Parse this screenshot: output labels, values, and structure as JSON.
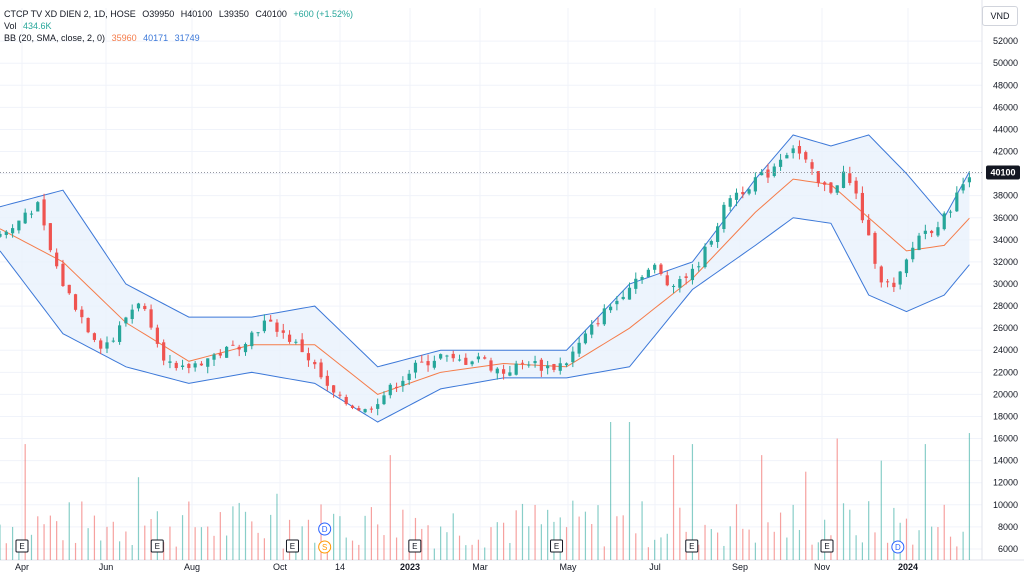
{
  "legend": {
    "symbol": "CTCP TV XD DIEN 2, 1D, HOSE",
    "open": "O39950",
    "high": "H40100",
    "low": "L39350",
    "close": "C40100",
    "change": "+600 (+1.52%)",
    "vol_label": "Vol",
    "vol_value": "434.6K",
    "bb_label": "BB (20, SMA, close, 2, 0)",
    "bb_mid": "35960",
    "bb_upper": "40171",
    "bb_lower": "31749"
  },
  "currency": "VND",
  "colors": {
    "up": "#26a69a",
    "down": "#ef5350",
    "bb_mid": "#f57c4a",
    "bb_band": "#3c78d8",
    "bb_fill": "#e8f1fc",
    "price_tag": "#131722",
    "grid": "#f0f3fa",
    "axis_text": "#131722"
  },
  "chart_data": {
    "type": "candlestick",
    "title": "CTCP TV XD DIEN 2, 1D, HOSE",
    "x_ticks": [
      "Apr",
      "Jun",
      "Aug",
      "Oct",
      "14",
      "2023",
      "Mar",
      "May",
      "Jul",
      "Sep",
      "Nov",
      "2024"
    ],
    "y_ticks": [
      6000,
      8000,
      10000,
      12000,
      14000,
      16000,
      18000,
      20000,
      22000,
      24000,
      26000,
      28000,
      30000,
      32000,
      34000,
      36000,
      38000,
      40000,
      42000,
      44000,
      46000,
      48000,
      50000,
      52000
    ],
    "ylim": [
      5000,
      55000
    ],
    "last_price": 40100,
    "last_price_label": "40100",
    "price_path": [
      [
        0,
        34500
      ],
      [
        2,
        35000
      ],
      [
        4,
        36500
      ],
      [
        6,
        37000
      ],
      [
        8,
        33000
      ],
      [
        10,
        30000
      ],
      [
        12,
        28000
      ],
      [
        14,
        26000
      ],
      [
        16,
        24500
      ],
      [
        18,
        25000
      ],
      [
        20,
        27000
      ],
      [
        22,
        28500
      ],
      [
        24,
        26500
      ],
      [
        26,
        23500
      ],
      [
        28,
        22000
      ],
      [
        30,
        22500
      ],
      [
        32,
        23000
      ],
      [
        34,
        23500
      ],
      [
        36,
        24000
      ],
      [
        38,
        24500
      ],
      [
        40,
        25500
      ],
      [
        42,
        26500
      ],
      [
        44,
        26000
      ],
      [
        46,
        25000
      ],
      [
        48,
        24000
      ],
      [
        50,
        22500
      ],
      [
        52,
        20500
      ],
      [
        54,
        19500
      ],
      [
        56,
        19000
      ],
      [
        58,
        18500
      ],
      [
        60,
        19500
      ],
      [
        62,
        20500
      ],
      [
        64,
        21500
      ],
      [
        66,
        22500
      ],
      [
        68,
        23000
      ],
      [
        70,
        23500
      ],
      [
        72,
        23000
      ],
      [
        74,
        23000
      ],
      [
        76,
        23500
      ],
      [
        78,
        22500
      ],
      [
        80,
        22000
      ],
      [
        82,
        22500
      ],
      [
        84,
        23000
      ],
      [
        86,
        22500
      ],
      [
        88,
        22500
      ],
      [
        90,
        23000
      ],
      [
        92,
        24500
      ],
      [
        94,
        26000
      ],
      [
        96,
        27500
      ],
      [
        98,
        28500
      ],
      [
        100,
        30000
      ],
      [
        102,
        31000
      ],
      [
        104,
        31500
      ],
      [
        106,
        30000
      ],
      [
        108,
        30500
      ],
      [
        110,
        31000
      ],
      [
        112,
        33000
      ],
      [
        114,
        35500
      ],
      [
        116,
        38000
      ],
      [
        118,
        38500
      ],
      [
        120,
        39500
      ],
      [
        122,
        40000
      ],
      [
        124,
        41500
      ],
      [
        126,
        42500
      ],
      [
        128,
        41000
      ],
      [
        130,
        39000
      ],
      [
        132,
        38500
      ],
      [
        134,
        40000
      ],
      [
        136,
        38000
      ],
      [
        138,
        34000
      ],
      [
        140,
        30500
      ],
      [
        142,
        29500
      ],
      [
        144,
        32000
      ],
      [
        146,
        34500
      ],
      [
        148,
        35000
      ],
      [
        150,
        36000
      ],
      [
        152,
        38000
      ],
      [
        154,
        40100
      ]
    ],
    "bb_mid_path": [
      [
        0,
        35000
      ],
      [
        10,
        32000
      ],
      [
        20,
        26500
      ],
      [
        30,
        23000
      ],
      [
        40,
        24500
      ],
      [
        50,
        24500
      ],
      [
        60,
        20000
      ],
      [
        70,
        22000
      ],
      [
        80,
        22800
      ],
      [
        90,
        22500
      ],
      [
        100,
        26000
      ],
      [
        110,
        30500
      ],
      [
        120,
        36500
      ],
      [
        126,
        39500
      ],
      [
        132,
        39000
      ],
      [
        138,
        36000
      ],
      [
        144,
        33000
      ],
      [
        150,
        33500
      ],
      [
        154,
        35960
      ]
    ],
    "bb_upper_path": [
      [
        0,
        37000
      ],
      [
        10,
        38500
      ],
      [
        20,
        30000
      ],
      [
        30,
        27000
      ],
      [
        40,
        27000
      ],
      [
        50,
        28000
      ],
      [
        60,
        22500
      ],
      [
        70,
        24000
      ],
      [
        80,
        24000
      ],
      [
        90,
        24000
      ],
      [
        100,
        30000
      ],
      [
        110,
        32000
      ],
      [
        120,
        39500
      ],
      [
        126,
        43500
      ],
      [
        132,
        42500
      ],
      [
        138,
        43500
      ],
      [
        144,
        40000
      ],
      [
        150,
        36000
      ],
      [
        154,
        40171
      ]
    ],
    "bb_lower_path": [
      [
        0,
        33000
      ],
      [
        10,
        25500
      ],
      [
        20,
        22500
      ],
      [
        30,
        21000
      ],
      [
        40,
        22000
      ],
      [
        50,
        21000
      ],
      [
        60,
        17500
      ],
      [
        70,
        20500
      ],
      [
        80,
        21500
      ],
      [
        90,
        21500
      ],
      [
        100,
        22500
      ],
      [
        110,
        29500
      ],
      [
        120,
        33500
      ],
      [
        126,
        36000
      ],
      [
        132,
        35500
      ],
      [
        138,
        29000
      ],
      [
        144,
        27500
      ],
      [
        150,
        29000
      ],
      [
        154,
        31749
      ]
    ],
    "volume_spikes": [
      [
        4,
        15500
      ],
      [
        22,
        12500
      ],
      [
        44,
        11000
      ],
      [
        58,
        9000
      ],
      [
        62,
        14500
      ],
      [
        82,
        9500
      ],
      [
        97,
        17500
      ],
      [
        100,
        17500
      ],
      [
        107,
        14500
      ],
      [
        110,
        15500
      ],
      [
        121,
        14500
      ],
      [
        128,
        13000
      ],
      [
        133,
        16000
      ],
      [
        140,
        14000
      ],
      [
        147,
        15500
      ],
      [
        154,
        16500
      ]
    ],
    "event_markers": [
      {
        "type": "E",
        "x": 10
      },
      {
        "type": "E",
        "x": 31
      },
      {
        "type": "E",
        "x": 52
      },
      {
        "type": "D",
        "x": 57
      },
      {
        "type": "S",
        "x": 57
      },
      {
        "type": "E",
        "x": 71
      },
      {
        "type": "E",
        "x": 93
      },
      {
        "type": "E",
        "x": 114
      },
      {
        "type": "E",
        "x": 135
      },
      {
        "type": "D",
        "x": 146
      }
    ]
  }
}
